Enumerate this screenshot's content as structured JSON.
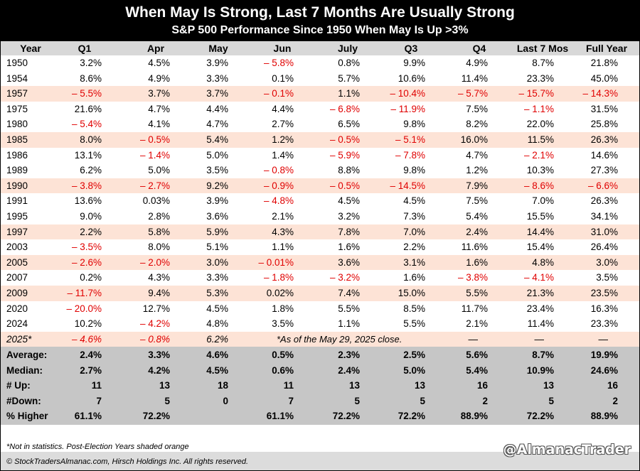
{
  "chart_data": {
    "type": "table",
    "title": "When May Is Strong, Last 7 Months Are Usually Strong",
    "subtitle": "S&P 500 Performance Since 1950 When May Is Up >3%",
    "columns": [
      "Year",
      "Q1",
      "Apr",
      "May",
      "Jun",
      "July",
      "Q3",
      "Q4",
      "Last 7 Mos",
      "Full Year"
    ],
    "rows": [
      {
        "shaded": false,
        "cells": [
          "1950",
          "3.2%",
          "4.5%",
          "3.9%",
          "– 5.8%",
          "0.8%",
          "9.9%",
          "4.9%",
          "8.7%",
          "21.8%"
        ]
      },
      {
        "shaded": false,
        "cells": [
          "1954",
          "8.6%",
          "4.9%",
          "3.3%",
          "0.1%",
          "5.7%",
          "10.6%",
          "11.4%",
          "23.3%",
          "45.0%"
        ]
      },
      {
        "shaded": true,
        "cells": [
          "1957",
          "– 5.5%",
          "3.7%",
          "3.7%",
          "– 0.1%",
          "1.1%",
          "– 10.4%",
          "– 5.7%",
          "– 15.7%",
          "– 14.3%"
        ]
      },
      {
        "shaded": false,
        "cells": [
          "1975",
          "21.6%",
          "4.7%",
          "4.4%",
          "4.4%",
          "– 6.8%",
          "– 11.9%",
          "7.5%",
          "– 1.1%",
          "31.5%"
        ]
      },
      {
        "shaded": false,
        "cells": [
          "1980",
          "– 5.4%",
          "4.1%",
          "4.7%",
          "2.7%",
          "6.5%",
          "9.8%",
          "8.2%",
          "22.0%",
          "25.8%"
        ]
      },
      {
        "shaded": true,
        "cells": [
          "1985",
          "8.0%",
          "– 0.5%",
          "5.4%",
          "1.2%",
          "– 0.5%",
          "– 5.1%",
          "16.0%",
          "11.5%",
          "26.3%"
        ]
      },
      {
        "shaded": false,
        "cells": [
          "1986",
          "13.1%",
          "– 1.4%",
          "5.0%",
          "1.4%",
          "– 5.9%",
          "– 7.8%",
          "4.7%",
          "– 2.1%",
          "14.6%"
        ]
      },
      {
        "shaded": false,
        "cells": [
          "1989",
          "6.2%",
          "5.0%",
          "3.5%",
          "– 0.8%",
          "8.8%",
          "9.8%",
          "1.2%",
          "10.3%",
          "27.3%"
        ]
      },
      {
        "shaded": true,
        "cells": [
          "1990",
          "– 3.8%",
          "– 2.7%",
          "9.2%",
          "– 0.9%",
          "– 0.5%",
          "– 14.5%",
          "7.9%",
          "– 8.6%",
          "– 6.6%"
        ]
      },
      {
        "shaded": false,
        "cells": [
          "1991",
          "13.6%",
          "0.03%",
          "3.9%",
          "– 4.8%",
          "4.5%",
          "4.5%",
          "7.5%",
          "7.0%",
          "26.3%"
        ]
      },
      {
        "shaded": false,
        "cells": [
          "1995",
          "9.0%",
          "2.8%",
          "3.6%",
          "2.1%",
          "3.2%",
          "7.3%",
          "5.4%",
          "15.5%",
          "34.1%"
        ]
      },
      {
        "shaded": true,
        "cells": [
          "1997",
          "2.2%",
          "5.8%",
          "5.9%",
          "4.3%",
          "7.8%",
          "7.0%",
          "2.4%",
          "14.4%",
          "31.0%"
        ]
      },
      {
        "shaded": false,
        "cells": [
          "2003",
          "– 3.5%",
          "8.0%",
          "5.1%",
          "1.1%",
          "1.6%",
          "2.2%",
          "11.6%",
          "15.4%",
          "26.4%"
        ]
      },
      {
        "shaded": true,
        "cells": [
          "2005",
          "– 2.6%",
          "– 2.0%",
          "3.0%",
          "– 0.01%",
          "3.6%",
          "3.1%",
          "1.6%",
          "4.8%",
          "3.0%"
        ]
      },
      {
        "shaded": false,
        "cells": [
          "2007",
          "0.2%",
          "4.3%",
          "3.3%",
          "– 1.8%",
          "– 3.2%",
          "1.6%",
          "– 3.8%",
          "– 4.1%",
          "3.5%"
        ]
      },
      {
        "shaded": true,
        "cells": [
          "2009",
          "– 11.7%",
          "9.4%",
          "5.3%",
          "0.02%",
          "7.4%",
          "15.0%",
          "5.5%",
          "21.3%",
          "23.5%"
        ]
      },
      {
        "shaded": false,
        "cells": [
          "2020",
          "– 20.0%",
          "12.7%",
          "4.5%",
          "1.8%",
          "5.5%",
          "8.5%",
          "11.7%",
          "23.4%",
          "16.3%"
        ]
      },
      {
        "shaded": false,
        "cells": [
          "2024",
          "10.2%",
          "– 4.2%",
          "4.8%",
          "3.5%",
          "1.1%",
          "5.5%",
          "2.1%",
          "11.4%",
          "23.3%"
        ]
      }
    ],
    "row_2025": {
      "cells": [
        "2025*",
        "– 4.6%",
        "– 0.8%",
        "6.2%"
      ],
      "note": "*As of the May 29, 2025 close.",
      "dashes": [
        "—",
        "—",
        "—"
      ]
    },
    "stats": [
      {
        "label": "Average:",
        "cells": [
          "2.4%",
          "3.3%",
          "4.6%",
          "0.5%",
          "2.3%",
          "2.5%",
          "5.6%",
          "8.7%",
          "19.9%"
        ]
      },
      {
        "label": "Median:",
        "cells": [
          "2.7%",
          "4.2%",
          "4.5%",
          "0.6%",
          "2.4%",
          "5.0%",
          "5.4%",
          "10.9%",
          "24.6%"
        ]
      },
      {
        "label": "# Up:",
        "cells": [
          "11",
          "13",
          "18",
          "11",
          "13",
          "13",
          "16",
          "13",
          "16"
        ]
      },
      {
        "label": "#Down:",
        "cells": [
          "7",
          "5",
          "0",
          "7",
          "5",
          "5",
          "2",
          "5",
          "2"
        ]
      },
      {
        "label": "% Higher",
        "cells": [
          "61.1%",
          "72.2%",
          "",
          "61.1%",
          "72.2%",
          "72.2%",
          "88.9%",
          "72.2%",
          "88.9%"
        ]
      }
    ]
  },
  "footer": {
    "note": "*Not in statistics. Post-Election Years shaded orange",
    "copyright": "© StockTradersAlmanac.com, Hirsch Holdings Inc. All rights reserved.",
    "brand": "@AlmanacTrader"
  },
  "colors": {
    "negative": "#e00000",
    "shaded_row": "#fde3d6",
    "header_bg": "#d8d8d8",
    "stats_bg": "#c6c6c6",
    "title_bg": "#000000"
  }
}
